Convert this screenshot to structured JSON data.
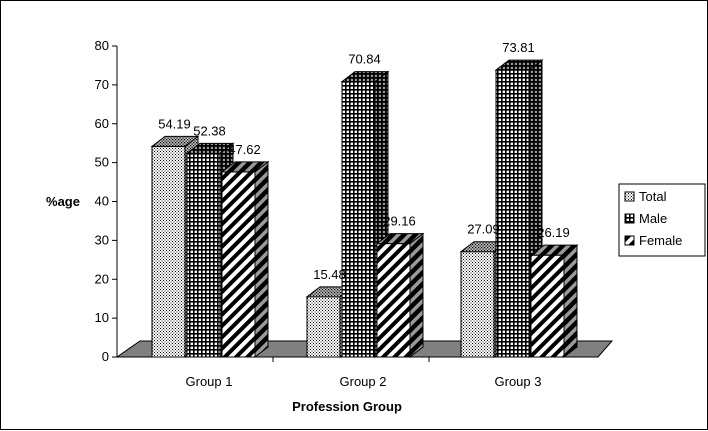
{
  "chart_data": {
    "type": "bar",
    "style": "3d-clustered",
    "categories": [
      "Group 1",
      "Group 2",
      "Group 3"
    ],
    "series": [
      {
        "name": "Total",
        "values": [
          54.19,
          15.48,
          27.09
        ]
      },
      {
        "name": "Male",
        "values": [
          52.38,
          70.84,
          73.81
        ]
      },
      {
        "name": "Female",
        "values": [
          47.62,
          29.16,
          26.19
        ]
      }
    ],
    "data_labels": [
      [
        "54.19",
        "52.38",
        "47.62"
      ],
      [
        "15.48",
        "70.84",
        "29.16"
      ],
      [
        "27.09",
        "73.81",
        "26.19"
      ]
    ],
    "xlabel": "Profession Group",
    "ylabel": "%age",
    "ylim": [
      0,
      80
    ],
    "yticks": [
      "0",
      "10",
      "20",
      "30",
      "40",
      "50",
      "60",
      "70",
      "80"
    ],
    "grid": false,
    "legend_position": "right",
    "colors": {
      "floor": "#808080",
      "bar_fill": "#ffffff",
      "pattern_ink": "#000000"
    }
  }
}
